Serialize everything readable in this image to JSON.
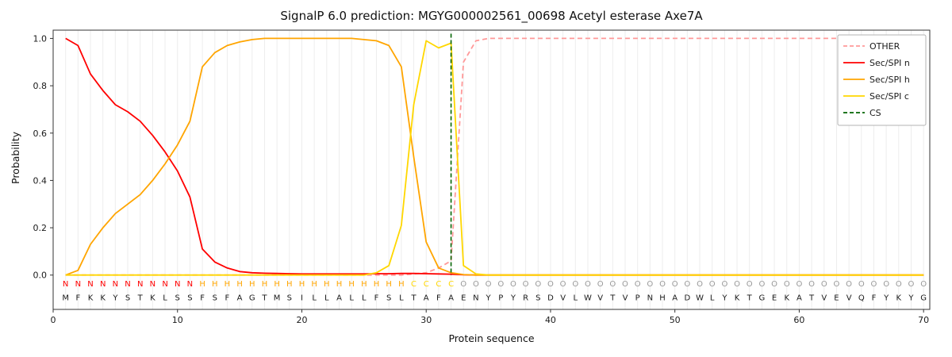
{
  "chart_data": {
    "type": "line",
    "title": "SignalP 6.0 prediction: MGYG000002561_00698 Acetyl esterase Axe7A",
    "xlabel": "Protein sequence",
    "ylabel": "Probability",
    "xlim": [
      0,
      70.5
    ],
    "ylim": [
      -0.145,
      1.035
    ],
    "xticks": [
      0,
      10,
      20,
      30,
      40,
      50,
      60,
      70
    ],
    "yticks": [
      0.0,
      0.2,
      0.4,
      0.6,
      0.8,
      1.0
    ],
    "grid": "vertical-line-per-residue",
    "legend_position": "upper right",
    "cs_position": 32,
    "x": [
      1,
      2,
      3,
      4,
      5,
      6,
      7,
      8,
      9,
      10,
      11,
      12,
      13,
      14,
      15,
      16,
      17,
      18,
      19,
      20,
      21,
      22,
      23,
      24,
      25,
      26,
      27,
      28,
      29,
      30,
      31,
      32,
      33,
      34,
      35,
      36,
      37,
      38,
      39,
      40,
      41,
      42,
      43,
      44,
      45,
      46,
      47,
      48,
      49,
      50,
      51,
      52,
      53,
      54,
      55,
      56,
      57,
      58,
      59,
      60,
      61,
      62,
      63,
      64,
      65,
      66,
      67,
      68,
      69,
      70
    ],
    "series": [
      {
        "name": "OTHER",
        "color": "#ff9999",
        "dash": true,
        "values": [
          0,
          0,
          0,
          0,
          0,
          0,
          0,
          0,
          0,
          0,
          0,
          0,
          0,
          0,
          0,
          0,
          0,
          0,
          0,
          0,
          0,
          0,
          0,
          0,
          0,
          0,
          0,
          0,
          0.005,
          0.01,
          0.03,
          0.06,
          0.9,
          0.99,
          1,
          1,
          1,
          1,
          1,
          1,
          1,
          1,
          1,
          1,
          1,
          1,
          1,
          1,
          1,
          1,
          1,
          1,
          1,
          1,
          1,
          1,
          1,
          1,
          1,
          1,
          1,
          1,
          1,
          1,
          1,
          1,
          1,
          1,
          1,
          1
        ]
      },
      {
        "name": "Sec/SPI n",
        "color": "#ff0000",
        "dash": false,
        "values": [
          1.0,
          0.97,
          0.85,
          0.78,
          0.72,
          0.69,
          0.65,
          0.59,
          0.52,
          0.44,
          0.33,
          0.11,
          0.055,
          0.03,
          0.015,
          0.01,
          0.008,
          0.007,
          0.006,
          0.005,
          0.005,
          0.005,
          0.005,
          0.005,
          0.005,
          0.006,
          0.006,
          0.007,
          0.007,
          0.006,
          0.005,
          0.004,
          0.001,
          0,
          0,
          0,
          0,
          0,
          0,
          0,
          0,
          0,
          0,
          0,
          0,
          0,
          0,
          0,
          0,
          0,
          0,
          0,
          0,
          0,
          0,
          0,
          0,
          0,
          0,
          0,
          0,
          0,
          0,
          0,
          0,
          0,
          0,
          0,
          0,
          0
        ]
      },
      {
        "name": "Sec/SPI h",
        "color": "#ffa500",
        "dash": false,
        "values": [
          0,
          0.02,
          0.13,
          0.2,
          0.26,
          0.3,
          0.34,
          0.4,
          0.47,
          0.55,
          0.65,
          0.88,
          0.94,
          0.97,
          0.985,
          0.995,
          1,
          1,
          1,
          1,
          1,
          1,
          1,
          1,
          0.995,
          0.99,
          0.97,
          0.88,
          0.5,
          0.14,
          0.03,
          0.01,
          0.002,
          0,
          0,
          0,
          0,
          0,
          0,
          0,
          0,
          0,
          0,
          0,
          0,
          0,
          0,
          0,
          0,
          0,
          0,
          0,
          0,
          0,
          0,
          0,
          0,
          0,
          0,
          0,
          0,
          0,
          0,
          0,
          0,
          0,
          0,
          0,
          0,
          0
        ]
      },
      {
        "name": "Sec/SPI c",
        "color": "#ffd700",
        "dash": false,
        "values": [
          0,
          0,
          0,
          0,
          0,
          0,
          0,
          0,
          0,
          0,
          0,
          0,
          0,
          0,
          0,
          0,
          0,
          0,
          0,
          0,
          0,
          0,
          0,
          0,
          0,
          0.01,
          0.04,
          0.21,
          0.72,
          0.99,
          0.96,
          0.98,
          0.04,
          0.005,
          0,
          0,
          0,
          0,
          0,
          0,
          0,
          0,
          0,
          0,
          0,
          0,
          0,
          0,
          0,
          0,
          0,
          0,
          0,
          0,
          0,
          0,
          0,
          0,
          0,
          0,
          0,
          0,
          0,
          0,
          0,
          0,
          0,
          0,
          0,
          0
        ]
      },
      {
        "name": "CS",
        "color": "#006400",
        "dash": true,
        "type": "vline",
        "x": 32
      }
    ],
    "sequence": "MFKKYSTKLSSFSFAGTMSILLALLFSLTAFAENYPYRSDVLWVTVPNHADWLYKTGEKATVEVQFYKYG",
    "regions": "NNNNNNNNNNNHHHHHHHHHHHHHHHHHCCCCOOOOOOOOOOOOOOOOOOOOOOOOOOOOOOOOOOOOOO",
    "region_colors": {
      "N": "#ff0000",
      "H": "#ffa500",
      "C": "#ffd700",
      "O": "#999999"
    }
  },
  "legend": {
    "entries": [
      "OTHER",
      "Sec/SPI n",
      "Sec/SPI h",
      "Sec/SPI c",
      "CS"
    ]
  }
}
